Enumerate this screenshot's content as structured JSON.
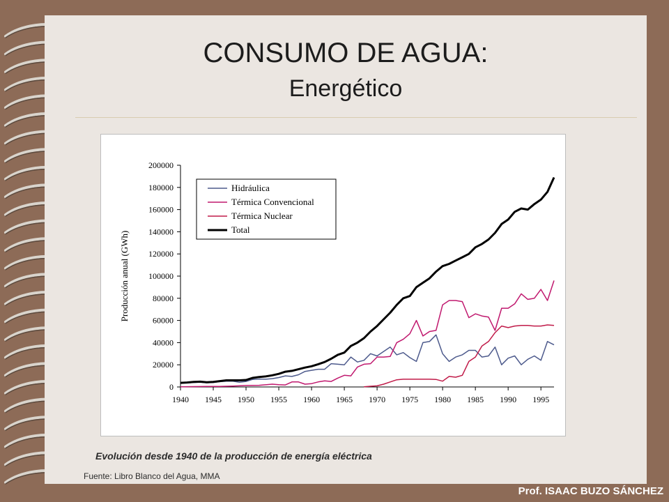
{
  "slide": {
    "title": "CONSUMO DE AGUA:",
    "subtitle": "Energético",
    "caption": "Evolución desde 1940 de la producción de energía eléctrica",
    "source": "Fuente: Libro Blanco del Agua, MMA",
    "author": "Prof. ISAAC BUZO SÁNCHEZ"
  },
  "colors": {
    "background": "#8d6b57",
    "slide": "#ebe6e1",
    "hidraulica": "#4d5a8c",
    "termica_convencional": "#c0186e",
    "termica_nuclear": "#c01a48",
    "total": "#000000"
  },
  "chart_data": {
    "type": "line",
    "title": "",
    "xlabel": "",
    "ylabel": "Producción anual (GWh)",
    "xlim": [
      1940,
      1997
    ],
    "ylim": [
      0,
      200000
    ],
    "xticks": [
      1940,
      1945,
      1950,
      1955,
      1960,
      1965,
      1970,
      1975,
      1980,
      1985,
      1990,
      1995
    ],
    "yticks": [
      0,
      20000,
      40000,
      60000,
      80000,
      100000,
      120000,
      140000,
      160000,
      180000,
      200000
    ],
    "grid": false,
    "legend": "top-left",
    "series": [
      {
        "name": "Hidráulica",
        "color": "#4d5a8c",
        "width": 1.5,
        "points": [
          [
            1940,
            3500
          ],
          [
            1941,
            3700
          ],
          [
            1942,
            4000
          ],
          [
            1943,
            4200
          ],
          [
            1944,
            3800
          ],
          [
            1945,
            4000
          ],
          [
            1946,
            4800
          ],
          [
            1947,
            5200
          ],
          [
            1948,
            5200
          ],
          [
            1949,
            4200
          ],
          [
            1950,
            5000
          ],
          [
            1951,
            6800
          ],
          [
            1952,
            7200
          ],
          [
            1953,
            7000
          ],
          [
            1954,
            7500
          ],
          [
            1955,
            8500
          ],
          [
            1956,
            10000
          ],
          [
            1957,
            9500
          ],
          [
            1958,
            11000
          ],
          [
            1959,
            14000
          ],
          [
            1960,
            15000
          ],
          [
            1961,
            16000
          ],
          [
            1962,
            16000
          ],
          [
            1963,
            21000
          ],
          [
            1964,
            20500
          ],
          [
            1965,
            20000
          ],
          [
            1966,
            27000
          ],
          [
            1967,
            22500
          ],
          [
            1968,
            24000
          ],
          [
            1969,
            30000
          ],
          [
            1970,
            28000
          ],
          [
            1971,
            32000
          ],
          [
            1972,
            36000
          ],
          [
            1973,
            29000
          ],
          [
            1974,
            31000
          ],
          [
            1975,
            26500
          ],
          [
            1976,
            23000
          ],
          [
            1977,
            40000
          ],
          [
            1978,
            41000
          ],
          [
            1979,
            47000
          ],
          [
            1980,
            30000
          ],
          [
            1981,
            23000
          ],
          [
            1982,
            27000
          ],
          [
            1983,
            29000
          ],
          [
            1984,
            33000
          ],
          [
            1985,
            33000
          ],
          [
            1986,
            27000
          ],
          [
            1987,
            28000
          ],
          [
            1988,
            36000
          ],
          [
            1989,
            20000
          ],
          [
            1990,
            26000
          ],
          [
            1991,
            28000
          ],
          [
            1992,
            20000
          ],
          [
            1993,
            25000
          ],
          [
            1994,
            28000
          ],
          [
            1995,
            24000
          ],
          [
            1996,
            41000
          ],
          [
            1997,
            38000
          ]
        ]
      },
      {
        "name": "Térmica Convencional",
        "color": "#c0186e",
        "width": 1.5,
        "points": [
          [
            1940,
            200
          ],
          [
            1942,
            300
          ],
          [
            1944,
            500
          ],
          [
            1946,
            500
          ],
          [
            1948,
            800
          ],
          [
            1950,
            1300
          ],
          [
            1952,
            1500
          ],
          [
            1954,
            2500
          ],
          [
            1955,
            2000
          ],
          [
            1956,
            1800
          ],
          [
            1957,
            4500
          ],
          [
            1958,
            4500
          ],
          [
            1959,
            2500
          ],
          [
            1960,
            3000
          ],
          [
            1961,
            4500
          ],
          [
            1962,
            5500
          ],
          [
            1963,
            5000
          ],
          [
            1964,
            8000
          ],
          [
            1965,
            10500
          ],
          [
            1966,
            10000
          ],
          [
            1967,
            18000
          ],
          [
            1968,
            20500
          ],
          [
            1969,
            21000
          ],
          [
            1970,
            27000
          ],
          [
            1971,
            27000
          ],
          [
            1972,
            27500
          ],
          [
            1973,
            40000
          ],
          [
            1974,
            43000
          ],
          [
            1975,
            48000
          ],
          [
            1976,
            60000
          ],
          [
            1977,
            46000
          ],
          [
            1978,
            50000
          ],
          [
            1979,
            51000
          ],
          [
            1980,
            74000
          ],
          [
            1981,
            78000
          ],
          [
            1982,
            78000
          ],
          [
            1983,
            77000
          ],
          [
            1984,
            62500
          ],
          [
            1985,
            66000
          ],
          [
            1986,
            64000
          ],
          [
            1987,
            63000
          ],
          [
            1988,
            51000
          ],
          [
            1989,
            71000
          ],
          [
            1990,
            71000
          ],
          [
            1991,
            75000
          ],
          [
            1992,
            84000
          ],
          [
            1993,
            79000
          ],
          [
            1994,
            80000
          ],
          [
            1995,
            88000
          ],
          [
            1996,
            78000
          ],
          [
            1997,
            96000
          ]
        ]
      },
      {
        "name": "Térmica Nuclear",
        "color": "#c01a48",
        "width": 1.5,
        "points": [
          [
            1968,
            200
          ],
          [
            1969,
            600
          ],
          [
            1970,
            1000
          ],
          [
            1971,
            2500
          ],
          [
            1972,
            4500
          ],
          [
            1973,
            6500
          ],
          [
            1974,
            7000
          ],
          [
            1975,
            7000
          ],
          [
            1976,
            7000
          ],
          [
            1977,
            7000
          ],
          [
            1978,
            7000
          ],
          [
            1979,
            6800
          ],
          [
            1980,
            5200
          ],
          [
            1981,
            9500
          ],
          [
            1982,
            8800
          ],
          [
            1983,
            10500
          ],
          [
            1984,
            23000
          ],
          [
            1985,
            27000
          ],
          [
            1986,
            37000
          ],
          [
            1987,
            41000
          ],
          [
            1988,
            49000
          ],
          [
            1989,
            55000
          ],
          [
            1990,
            53500
          ],
          [
            1991,
            55000
          ],
          [
            1992,
            55500
          ],
          [
            1993,
            55500
          ],
          [
            1994,
            55000
          ],
          [
            1995,
            55000
          ],
          [
            1996,
            56000
          ],
          [
            1997,
            55500
          ]
        ]
      },
      {
        "name": "Total",
        "color": "#000000",
        "width": 3,
        "points": [
          [
            1940,
            3700
          ],
          [
            1941,
            4000
          ],
          [
            1942,
            4600
          ],
          [
            1943,
            4800
          ],
          [
            1944,
            4300
          ],
          [
            1945,
            4500
          ],
          [
            1946,
            5300
          ],
          [
            1947,
            6000
          ],
          [
            1948,
            6000
          ],
          [
            1949,
            6000
          ],
          [
            1950,
            6300
          ],
          [
            1951,
            8200
          ],
          [
            1952,
            9000
          ],
          [
            1953,
            9500
          ],
          [
            1954,
            10500
          ],
          [
            1955,
            11800
          ],
          [
            1956,
            13800
          ],
          [
            1957,
            14500
          ],
          [
            1958,
            16000
          ],
          [
            1959,
            17500
          ],
          [
            1960,
            18700
          ],
          [
            1961,
            20500
          ],
          [
            1962,
            22500
          ],
          [
            1963,
            25500
          ],
          [
            1964,
            29000
          ],
          [
            1965,
            31000
          ],
          [
            1966,
            37000
          ],
          [
            1967,
            40000
          ],
          [
            1968,
            44000
          ],
          [
            1969,
            50000
          ],
          [
            1970,
            55000
          ],
          [
            1971,
            61000
          ],
          [
            1972,
            67000
          ],
          [
            1973,
            74000
          ],
          [
            1974,
            80000
          ],
          [
            1975,
            82000
          ],
          [
            1976,
            90000
          ],
          [
            1977,
            94000
          ],
          [
            1978,
            98000
          ],
          [
            1979,
            104000
          ],
          [
            1980,
            109000
          ],
          [
            1981,
            111000
          ],
          [
            1982,
            114000
          ],
          [
            1983,
            117000
          ],
          [
            1984,
            120000
          ],
          [
            1985,
            126000
          ],
          [
            1986,
            129000
          ],
          [
            1987,
            133000
          ],
          [
            1988,
            139000
          ],
          [
            1989,
            147000
          ],
          [
            1990,
            151000
          ],
          [
            1991,
            158000
          ],
          [
            1992,
            161000
          ],
          [
            1993,
            160000
          ],
          [
            1994,
            165000
          ],
          [
            1995,
            169000
          ],
          [
            1996,
            176000
          ],
          [
            1997,
            189000
          ]
        ]
      }
    ]
  }
}
